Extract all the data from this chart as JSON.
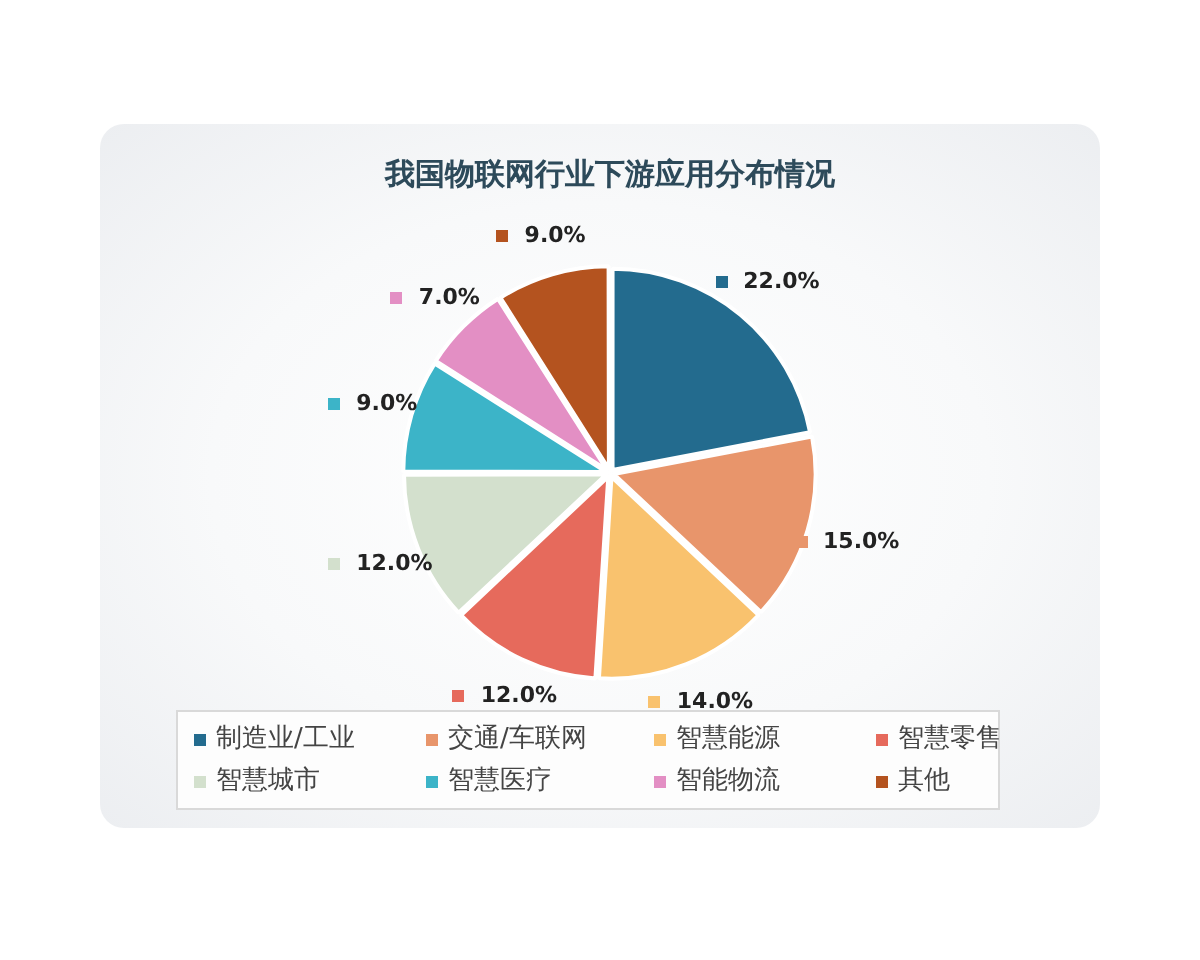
{
  "chart_data": {
    "type": "pie",
    "title": "我国物联网行业下游应用分布情况",
    "categories": [
      "制造业/工业",
      "交通/车联网",
      "智慧能源",
      "智慧零售",
      "智慧城市",
      "智慧医疗",
      "智能物流",
      "其他"
    ],
    "values": [
      22,
      15,
      14,
      12,
      12,
      9,
      7,
      9
    ],
    "colors": [
      "#236b8e",
      "#e8956b",
      "#f9c26e",
      "#e66a5c",
      "#d3e0cd",
      "#3cb4c8",
      "#e38fc4",
      "#b4531f"
    ],
    "value_labels": [
      "22.0%",
      "15.0%",
      "14.0%",
      "12.0%",
      "12.0%",
      "9.0%",
      "7.0%",
      "9.0%"
    ],
    "legend": "bottom"
  }
}
